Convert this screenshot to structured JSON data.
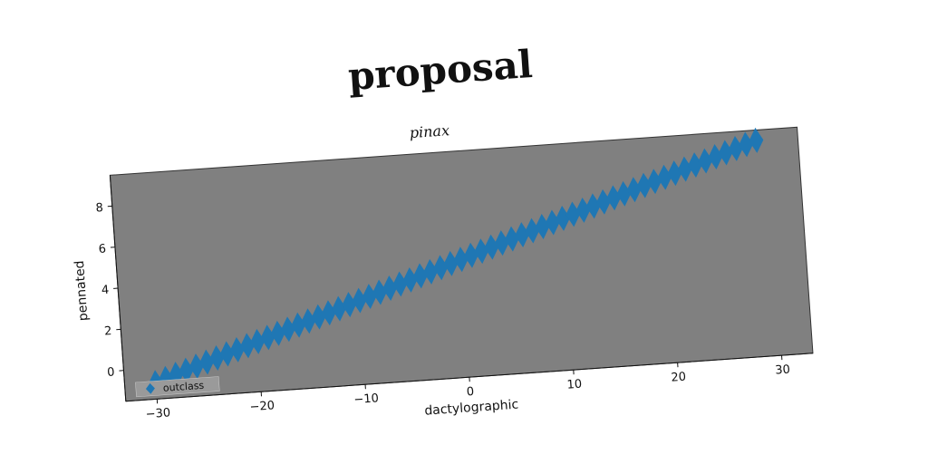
{
  "chart_data": {
    "type": "scatter",
    "title": "proposal",
    "subtitle": "pinax",
    "xlabel": "dactylographic",
    "ylabel": "pennated",
    "xlim": [
      -33,
      33
    ],
    "ylim": [
      -1.5,
      9.5
    ],
    "xticks": [
      -30,
      -20,
      -10,
      0,
      10,
      20,
      30
    ],
    "yticks": [
      0,
      2,
      4,
      6,
      8
    ],
    "xtick_labels": [
      "−30",
      "−20",
      "−10",
      "0",
      "10",
      "20",
      "30"
    ],
    "ytick_labels": [
      "0",
      "2",
      "4",
      "6",
      "8"
    ],
    "grid": false,
    "legend_position": "lower-left",
    "marker": "diamond",
    "series": [
      {
        "name": "outclass",
        "color": "#1f77b4",
        "x_start": -30,
        "x_end": 29,
        "x_step": 1,
        "y_start": -0.7,
        "y_end": 9.0
      }
    ],
    "colors": {
      "plot_background": "#808080",
      "marker": "#1f77b4"
    }
  }
}
